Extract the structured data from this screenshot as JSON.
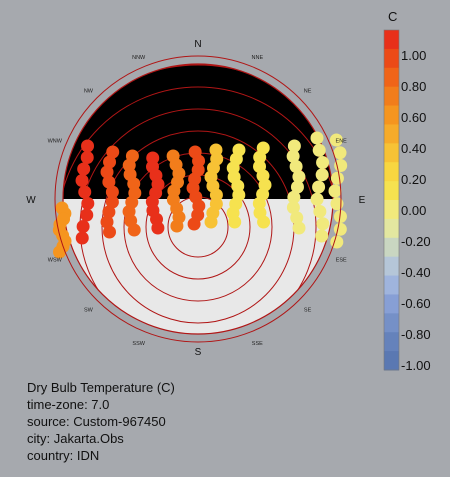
{
  "chart_data": {
    "type": "scatter",
    "chart_kind": "sun-path diagram",
    "compass": {
      "major": [
        "N",
        "E",
        "S",
        "W"
      ],
      "minor": [
        "NNE",
        "NE",
        "ENE",
        "ESE",
        "SE",
        "SSE",
        "SSW",
        "SW",
        "WSW",
        "WNW",
        "NW",
        "NNW"
      ]
    },
    "legend": {
      "title": "C",
      "placement": "right",
      "ticks": [
        "1.00",
        "0.80",
        "0.60",
        "0.40",
        "0.20",
        "0.00",
        "-0.20",
        "-0.40",
        "-0.60",
        "-0.80",
        "-1.00"
      ],
      "range": [
        -1.0,
        1.0
      ],
      "colors": [
        "#e8301a",
        "#ec4a17",
        "#f06418",
        "#f27d1b",
        "#f5951f",
        "#f6ab2a",
        "#f7c235",
        "#f8d640",
        "#f6e24f",
        "#f1e97c",
        "#e3e7a0",
        "#c9d6c1",
        "#b5c6d8",
        "#9fb4dd",
        "#879fd5",
        "#7590c7",
        "#6582bb",
        "#5a78b2"
      ]
    },
    "colors": {
      "background": "#a6a9ae",
      "night_sky": "#000000",
      "day_sky": "#e8e8e8",
      "hour_lines": "#b01616"
    },
    "series": [
      {
        "values": [
          0.45,
          0.95,
          0.85,
          0.7,
          0.9,
          0.65,
          0.8,
          0.3,
          0.1,
          0.05,
          0.0,
          0.0,
          0.0
        ]
      }
    ]
  },
  "info": {
    "title": "Dry Bulb Temperature (C)",
    "timezone": "time-zone: 7.0",
    "source": "source: Custom-967450",
    "city": "city: Jakarta.Obs",
    "country": "country: IDN"
  }
}
